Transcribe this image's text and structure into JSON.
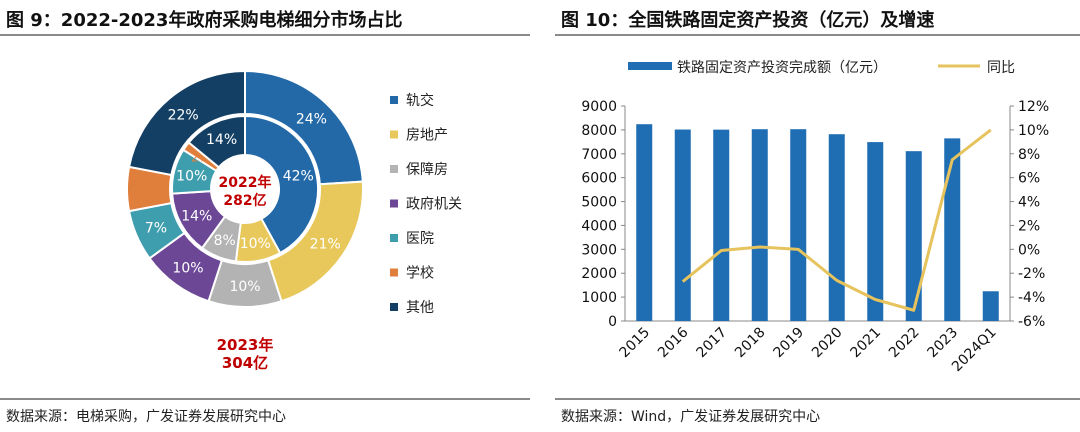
{
  "left": {
    "title": "图 9：2022-2023年政府采购电梯细分市场占比",
    "source": "数据来源：电梯采购，广发证券发展研究中心",
    "chart_data": {
      "type": "donut",
      "categories": [
        "轨交",
        "房地产",
        "保障房",
        "政府机关",
        "医院",
        "学校",
        "其他"
      ],
      "colors": [
        "#2369a8",
        "#e8c85a",
        "#b3b3b3",
        "#6b4796",
        "#3f9eae",
        "#e07f3c",
        "#143f64"
      ],
      "inner": {
        "name": "2022年",
        "label_line1": "2022年",
        "label_line2": "282亿",
        "values": [
          42,
          10,
          8,
          14,
          10,
          2,
          14
        ],
        "labels": [
          "42%",
          "10%",
          "8%",
          "14%",
          "10%",
          "2%",
          "14%"
        ]
      },
      "outer": {
        "name": "2023年",
        "label_line1": "2023年",
        "label_line2": "304亿",
        "values": [
          24,
          21,
          10,
          10,
          7,
          6,
          22
        ],
        "labels": [
          "24%",
          "21%",
          "10%",
          "10%",
          "7%",
          "6%",
          "22%"
        ]
      }
    }
  },
  "right": {
    "title": "图 10：全国铁路固定资产投资（亿元）及增速",
    "source": "数据来源：Wind，广发证券发展研究中心",
    "chart_data": {
      "type": "bar+line",
      "categories": [
        "2015",
        "2016",
        "2017",
        "2018",
        "2019",
        "2020",
        "2021",
        "2022",
        "2023",
        "2024Q1"
      ],
      "bar_series": {
        "name": "铁路固定资产投资完成额（亿元）",
        "color": "#1f6db3",
        "values": [
          8238,
          8015,
          8010,
          8028,
          8029,
          7819,
          7489,
          7109,
          7645,
          1245
        ]
      },
      "line_series": {
        "name": "同比",
        "color": "#e6c35c",
        "values": [
          null,
          -2.7,
          -0.1,
          0.2,
          0.0,
          -2.6,
          -4.2,
          -5.1,
          7.5,
          10.0
        ]
      },
      "y_left": {
        "min": 0,
        "max": 9000,
        "step": 1000,
        "ticks": [
          "0",
          "1000",
          "2000",
          "3000",
          "4000",
          "5000",
          "6000",
          "7000",
          "8000",
          "9000"
        ]
      },
      "y_right": {
        "min": -6,
        "max": 12,
        "step": 2,
        "ticks": [
          "-6%",
          "-4%",
          "-2%",
          "0%",
          "2%",
          "4%",
          "6%",
          "8%",
          "10%",
          "12%"
        ]
      }
    }
  }
}
